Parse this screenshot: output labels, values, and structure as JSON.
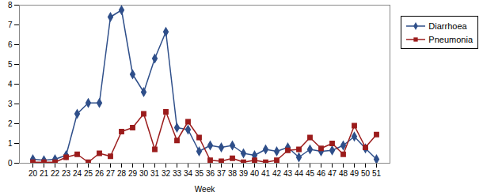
{
  "chart_data": {
    "type": "line",
    "x_label": "Week",
    "categories": [
      "20",
      "21",
      "22",
      "23",
      "24",
      "25",
      "26",
      "27",
      "28",
      "29",
      "30",
      "31",
      "32",
      "33",
      "34",
      "35",
      "36",
      "37",
      "38",
      "39",
      "40",
      "41",
      "42",
      "43",
      "44",
      "45",
      "46",
      "47",
      "48",
      "49",
      "50",
      "51"
    ],
    "series": [
      {
        "name": "Diarrhoea",
        "color": "#2f4f8a",
        "marker": "diamond",
        "values": [
          0.2,
          0.15,
          0.2,
          0.4,
          2.5,
          3.05,
          3.05,
          7.4,
          7.75,
          4.5,
          3.6,
          5.3,
          6.65,
          1.8,
          1.7,
          0.6,
          0.9,
          0.8,
          0.9,
          0.5,
          0.4,
          0.7,
          0.6,
          0.8,
          0.3,
          0.7,
          0.6,
          0.65,
          0.9,
          1.35,
          0.75,
          0.2
        ]
      },
      {
        "name": "Pneumonia",
        "color": "#9b1c1c",
        "marker": "square",
        "values": [
          0.05,
          0.05,
          0.05,
          0.3,
          0.45,
          0.05,
          0.5,
          0.35,
          1.6,
          1.8,
          2.5,
          0.7,
          2.6,
          1.15,
          2.1,
          1.3,
          0.15,
          0.1,
          0.25,
          0.05,
          0.15,
          0.05,
          0.15,
          0.65,
          0.7,
          1.3,
          0.75,
          1.0,
          0.45,
          1.9,
          0.8,
          1.45
        ]
      }
    ],
    "ylim": [
      0,
      8
    ],
    "yticks": [
      0,
      1,
      2,
      3,
      4,
      5,
      6,
      7,
      8
    ],
    "grid": false,
    "legend": "top-right"
  }
}
